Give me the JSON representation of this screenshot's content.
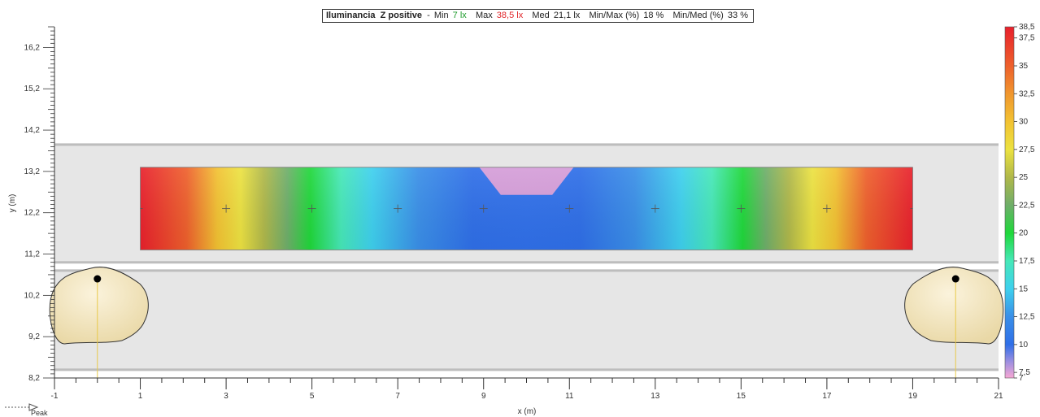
{
  "header": {
    "metric": "Iluminancia",
    "plane": "Z positive",
    "sep": "-",
    "min_label": "Min",
    "min_value": "7 lx",
    "max_label": "Max",
    "max_value": "38,5 lx",
    "med_label": "Med",
    "med_value": "21,1 lx",
    "minmax_label": "Min/Max (%)",
    "minmax_value": "18 %",
    "minmed_label": "Min/Med (%)",
    "minmed_value": "33 %"
  },
  "legend": {
    "peak_label": "Peak"
  },
  "colors": {
    "road": "#e6e6e6",
    "road_edge": "#bdbdbd",
    "luminaire_fill": "#f2e4bd",
    "luminaire_stroke": "#333333",
    "axis": "#333333",
    "grid_marker": "#555555",
    "beam": "#e8c94a"
  },
  "chart_data": {
    "type": "heatmap",
    "title": "Iluminancia Z positive",
    "xlabel": "x (m)",
    "ylabel": "y (m)",
    "xlim": [
      -1,
      21
    ],
    "ylim": [
      8.2,
      16.7
    ],
    "x_ticks": [
      "-1",
      "1",
      "3",
      "5",
      "7",
      "9",
      "11",
      "13",
      "15",
      "17",
      "19",
      "21"
    ],
    "y_ticks": [
      "8,2",
      "9,2",
      "10,2",
      "11,2",
      "12,2",
      "13,2",
      "14,2",
      "15,2",
      "16,2"
    ],
    "grid_area": {
      "x": [
        1,
        19
      ],
      "y": [
        11.3,
        13.3
      ]
    },
    "calc_points_x": [
      1,
      3,
      5,
      7,
      9,
      11,
      13,
      15,
      17,
      19
    ],
    "calc_points_y": 12.3,
    "road_bands": [
      {
        "y": [
          8.4,
          10.8
        ]
      },
      {
        "y": [
          11.0,
          13.85
        ]
      }
    ],
    "luminaires": [
      {
        "x": 0,
        "y": 10.6
      },
      {
        "x": 20,
        "y": 10.6
      }
    ],
    "colorbar": {
      "min": 7,
      "max": 38.5,
      "labels": [
        "38,5",
        "37,5",
        "35",
        "32,5",
        "30",
        "27,5",
        "25",
        "22,5",
        "20",
        "17,5",
        "15",
        "12,5",
        "10",
        "7,5",
        "7"
      ],
      "label_values": [
        38.5,
        37.5,
        35,
        32.5,
        30,
        27.5,
        25,
        22.5,
        20,
        17.5,
        15,
        12.5,
        10,
        7.5,
        7
      ],
      "stops": [
        {
          "value": 7,
          "color": "#f7a8d4"
        },
        {
          "value": 8.5,
          "color": "#9a8ee0"
        },
        {
          "value": 10,
          "color": "#2f6fe8"
        },
        {
          "value": 12.5,
          "color": "#3a8fe8"
        },
        {
          "value": 15,
          "color": "#3ed0ee"
        },
        {
          "value": 17.5,
          "color": "#46e8b8"
        },
        {
          "value": 20,
          "color": "#1fd83a"
        },
        {
          "value": 22.5,
          "color": "#6fae6a"
        },
        {
          "value": 25,
          "color": "#b0b84a"
        },
        {
          "value": 27.5,
          "color": "#ece241"
        },
        {
          "value": 30,
          "color": "#f2c232"
        },
        {
          "value": 32.5,
          "color": "#f0962e"
        },
        {
          "value": 35,
          "color": "#ee602c"
        },
        {
          "value": 38.5,
          "color": "#e8202c"
        }
      ]
    }
  }
}
